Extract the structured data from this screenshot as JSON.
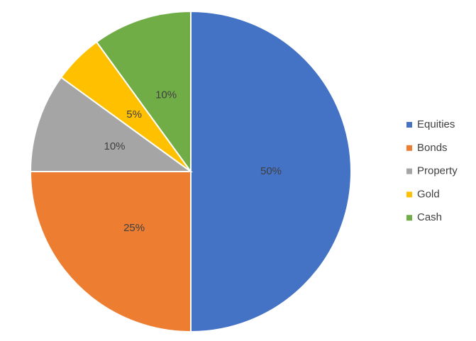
{
  "chart_data": {
    "type": "pie",
    "categories": [
      "Equities",
      "Bonds",
      "Property",
      "Gold",
      "Cash"
    ],
    "values": [
      50,
      25,
      10,
      5,
      10
    ],
    "value_labels": [
      "50%",
      "25%",
      "10%",
      "5%",
      "10%"
    ],
    "colors": [
      "#4472c4",
      "#ed7d31",
      "#a5a5a5",
      "#ffc000",
      "#70ad47"
    ],
    "legend": "right"
  }
}
